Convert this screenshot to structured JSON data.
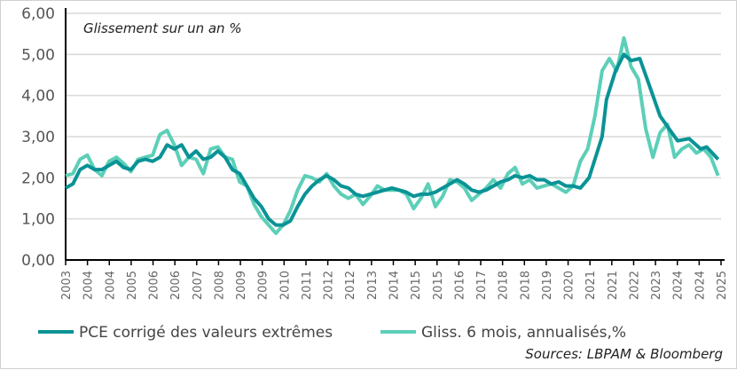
{
  "chart_data": {
    "type": "line",
    "title": "Glissement sur un an %",
    "source": "Sources: LBPAM & Bloomberg",
    "ylim": [
      0,
      6
    ],
    "y_ticks": [
      "0,00",
      "1,00",
      "2,00",
      "3,00",
      "4,00",
      "5,00",
      "6,00"
    ],
    "x_tick_labels": [
      "2003",
      "2004",
      "2004",
      "2005",
      "2006",
      "2006",
      "2007",
      "2008",
      "2009",
      "2009",
      "2010",
      "2011",
      "2012",
      "2012",
      "2013",
      "2014",
      "2015",
      "2015",
      "2016",
      "2017",
      "2018",
      "2018",
      "2019",
      "2020",
      "2021",
      "2021",
      "2022",
      "2023",
      "2024",
      "2024",
      "2025"
    ],
    "xlim": [
      2003.0,
      2025.6
    ],
    "grid": "horizontal",
    "legend_placement": "bottom",
    "series": [
      {
        "name": "PCE corrigé des valeurs extrêmes",
        "color": "#0a9396",
        "x": [
          2003.0,
          2003.25,
          2003.5,
          2003.75,
          2004.0,
          2004.25,
          2004.5,
          2004.75,
          2005.0,
          2005.25,
          2005.5,
          2005.75,
          2006.0,
          2006.25,
          2006.5,
          2006.75,
          2007.0,
          2007.25,
          2007.5,
          2007.75,
          2008.0,
          2008.25,
          2008.5,
          2008.75,
          2009.0,
          2009.25,
          2009.5,
          2009.75,
          2010.0,
          2010.25,
          2010.5,
          2010.75,
          2011.0,
          2011.25,
          2011.5,
          2011.75,
          2012.0,
          2012.25,
          2012.5,
          2012.75,
          2013.0,
          2013.25,
          2013.5,
          2013.75,
          2014.0,
          2014.25,
          2014.5,
          2014.75,
          2015.0,
          2015.25,
          2015.5,
          2015.75,
          2016.0,
          2016.25,
          2016.5,
          2016.75,
          2017.0,
          2017.25,
          2017.5,
          2017.75,
          2018.0,
          2018.25,
          2018.5,
          2018.75,
          2019.0,
          2019.25,
          2019.5,
          2019.75,
          2020.0,
          2020.25,
          2020.5,
          2020.75,
          2021.05,
          2021.5,
          2021.65,
          2021.96,
          2022.25,
          2022.5,
          2022.8,
          2023.1,
          2023.5,
          2023.9,
          2024.1,
          2024.5,
          2024.9,
          2025.1,
          2025.5
        ],
        "values": [
          1.75,
          1.85,
          2.2,
          2.3,
          2.2,
          2.2,
          2.3,
          2.4,
          2.25,
          2.2,
          2.4,
          2.45,
          2.4,
          2.5,
          2.8,
          2.7,
          2.8,
          2.5,
          2.65,
          2.45,
          2.5,
          2.65,
          2.5,
          2.2,
          2.1,
          1.8,
          1.5,
          1.3,
          1.0,
          0.85,
          0.85,
          0.95,
          1.3,
          1.6,
          1.8,
          1.95,
          2.05,
          1.95,
          1.8,
          1.75,
          1.6,
          1.55,
          1.6,
          1.65,
          1.7,
          1.75,
          1.7,
          1.65,
          1.55,
          1.6,
          1.6,
          1.65,
          1.75,
          1.85,
          1.95,
          1.85,
          1.7,
          1.65,
          1.7,
          1.8,
          1.9,
          1.95,
          2.05,
          2.0,
          2.05,
          1.95,
          1.95,
          1.85,
          1.9,
          1.8,
          1.8,
          1.75,
          2.0,
          3.0,
          3.9,
          4.6,
          5.0,
          4.85,
          4.9,
          4.3,
          3.5,
          3.1,
          2.9,
          2.95,
          2.7,
          2.75,
          2.45
        ]
      },
      {
        "name": "Gliss. 6 mois, annualisés,%",
        "color": "#5ccfb8",
        "x": [
          2003.0,
          2003.25,
          2003.5,
          2003.75,
          2004.0,
          2004.25,
          2004.5,
          2004.75,
          2005.0,
          2005.25,
          2005.5,
          2005.75,
          2006.0,
          2006.25,
          2006.5,
          2006.75,
          2007.0,
          2007.25,
          2007.5,
          2007.75,
          2008.0,
          2008.25,
          2008.5,
          2008.75,
          2009.0,
          2009.25,
          2009.5,
          2009.75,
          2010.0,
          2010.25,
          2010.5,
          2010.75,
          2011.0,
          2011.25,
          2011.5,
          2011.75,
          2012.0,
          2012.25,
          2012.5,
          2012.75,
          2013.0,
          2013.25,
          2013.5,
          2013.75,
          2014.0,
          2014.25,
          2014.5,
          2014.75,
          2015.0,
          2015.25,
          2015.5,
          2015.75,
          2016.0,
          2016.25,
          2016.5,
          2016.75,
          2017.0,
          2017.25,
          2017.5,
          2017.75,
          2018.0,
          2018.25,
          2018.5,
          2018.75,
          2019.0,
          2019.25,
          2019.5,
          2019.75,
          2020.0,
          2020.25,
          2020.5,
          2020.75,
          2021.0,
          2021.25,
          2021.5,
          2021.75,
          2022.0,
          2022.25,
          2022.5,
          2022.75,
          2023.0,
          2023.25,
          2023.5,
          2023.75,
          2024.0,
          2024.25,
          2024.5,
          2024.75,
          2025.0,
          2025.25,
          2025.5
        ],
        "values": [
          2.05,
          2.1,
          2.45,
          2.55,
          2.2,
          2.05,
          2.4,
          2.5,
          2.35,
          2.15,
          2.45,
          2.5,
          2.55,
          3.05,
          3.15,
          2.8,
          2.3,
          2.5,
          2.45,
          2.1,
          2.7,
          2.75,
          2.5,
          2.45,
          1.9,
          1.8,
          1.35,
          1.05,
          0.85,
          0.65,
          0.85,
          1.2,
          1.7,
          2.05,
          2.0,
          1.9,
          2.1,
          1.8,
          1.6,
          1.5,
          1.6,
          1.35,
          1.55,
          1.8,
          1.7,
          1.7,
          1.7,
          1.6,
          1.25,
          1.5,
          1.85,
          1.3,
          1.55,
          1.95,
          1.9,
          1.75,
          1.45,
          1.6,
          1.75,
          1.95,
          1.75,
          2.1,
          2.25,
          1.85,
          1.95,
          1.75,
          1.8,
          1.85,
          1.75,
          1.65,
          1.8,
          2.4,
          2.7,
          3.5,
          4.6,
          4.9,
          4.6,
          5.4,
          4.7,
          4.4,
          3.2,
          2.5,
          3.1,
          3.3,
          2.5,
          2.7,
          2.8,
          2.6,
          2.7,
          2.5,
          2.05
        ]
      }
    ]
  }
}
